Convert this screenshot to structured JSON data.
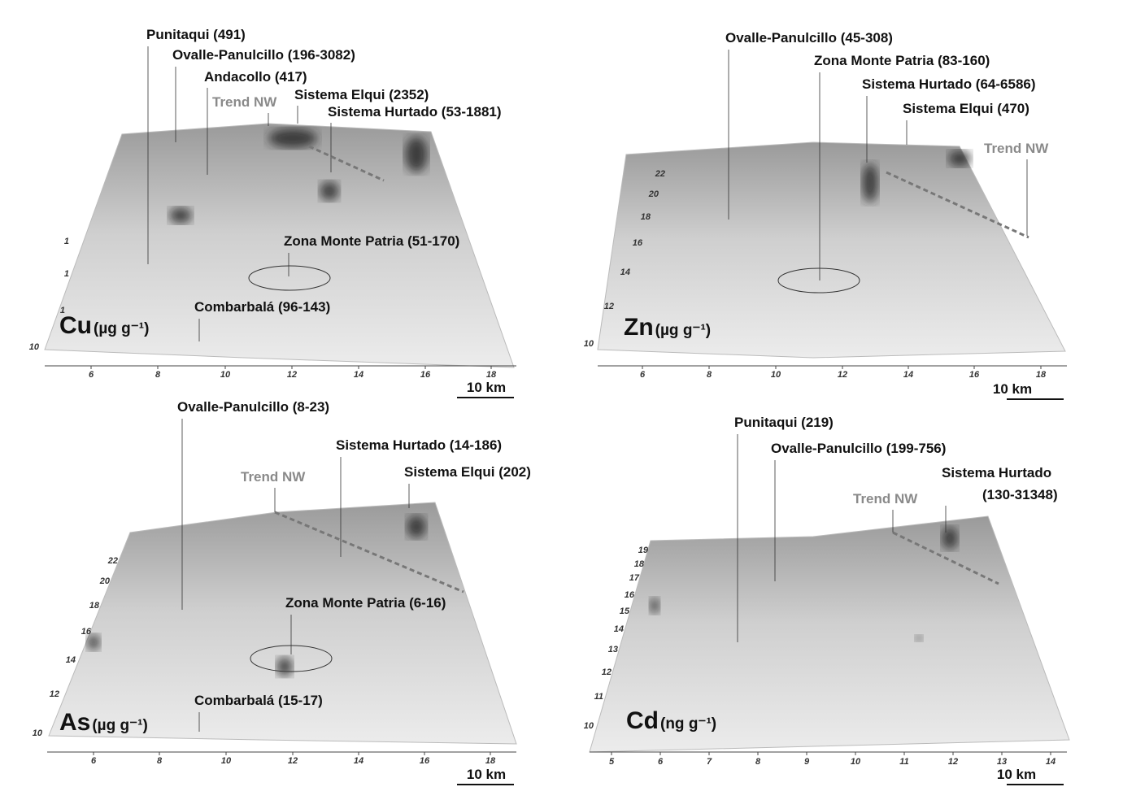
{
  "panels": [
    {
      "element": "Cu",
      "unit": "(µg g⁻¹)",
      "annotations": [
        "Punitaqui (491)",
        "Ovalle-Panulcillo (196-3082)",
        "Andacollo (417)",
        "Sistema Elqui (2352)",
        "Sistema Hurtado (53-1881)",
        "Zona Monte Patria (51-170)",
        "Combarbalá (96-143)"
      ],
      "trend": "Trend NW",
      "xticks": [
        "6",
        "8",
        "10",
        "12",
        "14",
        "16",
        "18"
      ],
      "yticks": [
        "1",
        "1",
        "1",
        "10"
      ],
      "scale": "10 km"
    },
    {
      "element": "Zn",
      "unit": "(µg g⁻¹)",
      "annotations": [
        "Ovalle-Panulcillo (45-308)",
        "Zona Monte Patria (83-160)",
        "Sistema Hurtado (64-6586)",
        "Sistema Elqui (470)"
      ],
      "trend": "Trend NW",
      "xticks": [
        "6",
        "8",
        "10",
        "12",
        "14",
        "16",
        "18"
      ],
      "yticks": [
        "22",
        "20",
        "18",
        "16",
        "14",
        "12",
        "10"
      ],
      "scale": "10 km"
    },
    {
      "element": "As",
      "unit": "(µg g⁻¹)",
      "annotations": [
        "Ovalle-Panulcillo (8-23)",
        "Sistema Hurtado (14-186)",
        "Sistema Elqui (202)",
        "Zona Monte Patria (6-16)",
        "Combarbalá (15-17)"
      ],
      "trend": "Trend NW",
      "xticks": [
        "6",
        "8",
        "10",
        "12",
        "14",
        "16",
        "18"
      ],
      "yticks": [
        "22",
        "20",
        "18",
        "16",
        "14",
        "12",
        "10"
      ],
      "scale": "10 km"
    },
    {
      "element": "Cd",
      "unit": "(ng g⁻¹)",
      "annotations": [
        "Punitaqui (219)",
        "Ovalle-Panulcillo (199-756)",
        "Sistema Hurtado",
        "(130-31348)"
      ],
      "trend": "Trend NW",
      "xticks": [
        "5",
        "6",
        "7",
        "8",
        "9",
        "10",
        "11",
        "12",
        "13",
        "14"
      ],
      "yticks": [
        "19",
        "18",
        "17",
        "16",
        "15",
        "14",
        "13",
        "12",
        "11",
        "10"
      ],
      "scale": "10 km"
    }
  ]
}
